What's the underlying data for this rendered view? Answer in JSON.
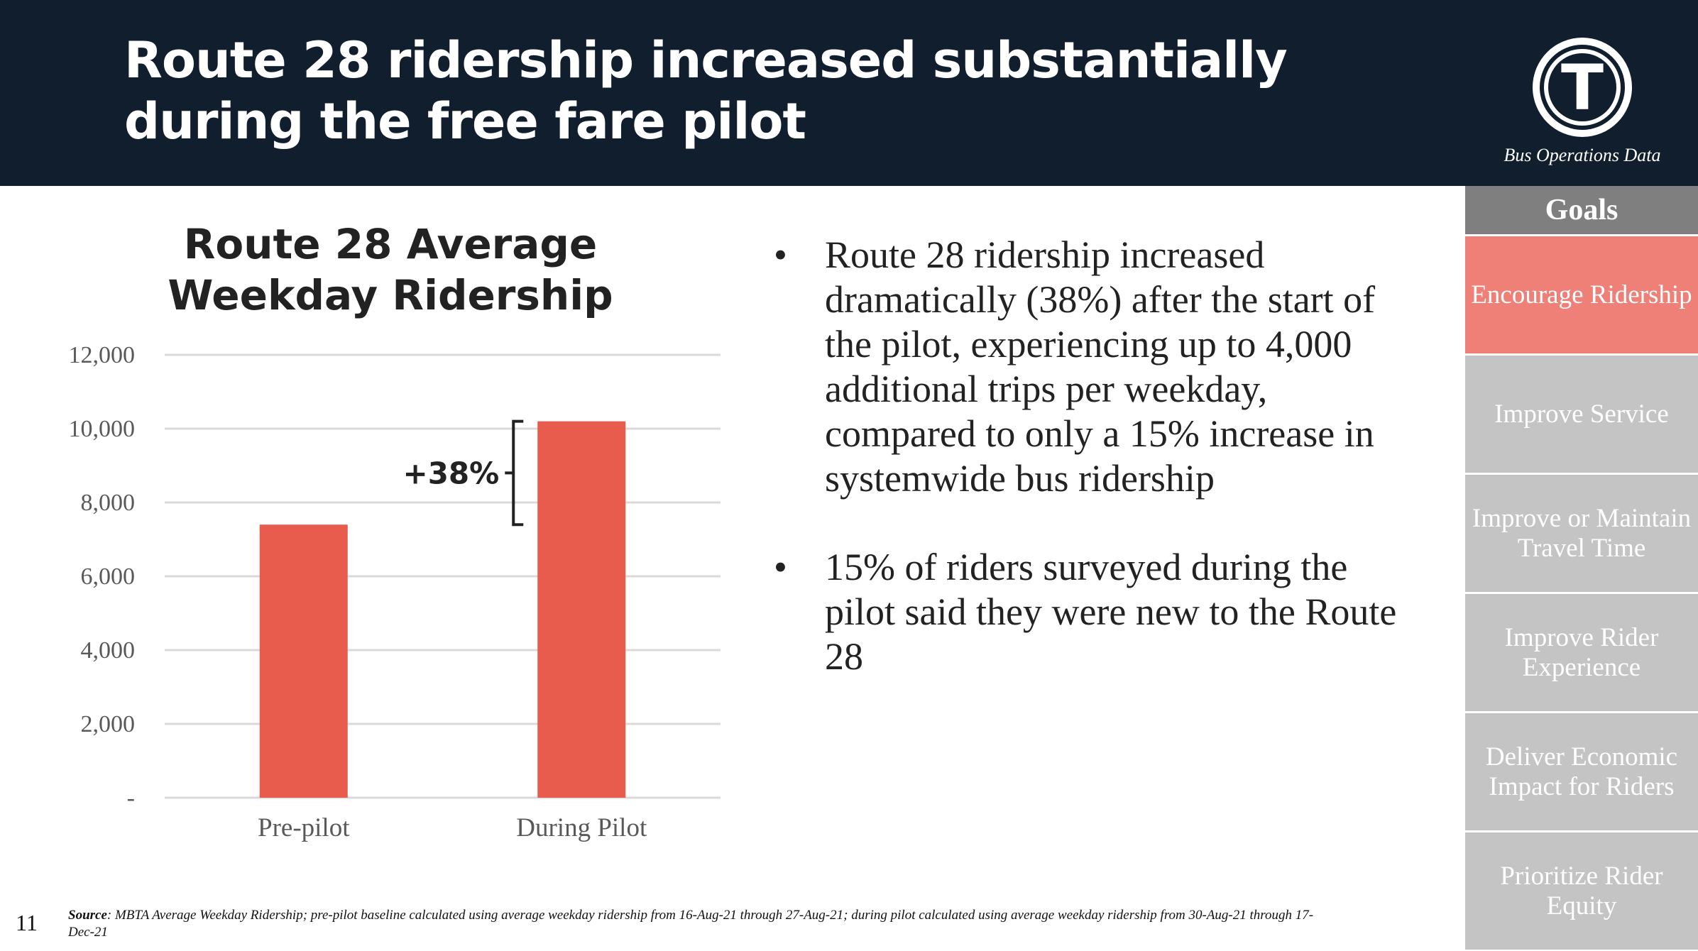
{
  "header": {
    "title": "Route 28 ridership increased substantially during the free fare pilot",
    "logo_letter": "T",
    "logo_caption": "Bus Operations Data"
  },
  "sidebar": {
    "heading": "Goals",
    "goals": [
      {
        "label": "Encourage Ridership",
        "active": true
      },
      {
        "label": "Improve Service",
        "active": false
      },
      {
        "label": "Improve or Maintain Travel Time",
        "active": false
      },
      {
        "label": "Improve Rider Experience",
        "active": false
      },
      {
        "label": "Deliver Economic Impact for Riders",
        "active": false
      },
      {
        "label": "Prioritize Rider Equity",
        "active": false
      }
    ]
  },
  "chart_data": {
    "type": "bar",
    "title": "Route 28 Average Weekday Ridership",
    "categories": [
      "Pre-pilot",
      "During Pilot"
    ],
    "values": [
      7400,
      10200
    ],
    "ylim": [
      0,
      12000
    ],
    "yticks": [
      {
        "value": 0,
        "label": "-"
      },
      {
        "value": 2000,
        "label": "2,000"
      },
      {
        "value": 4000,
        "label": "4,000"
      },
      {
        "value": 6000,
        "label": "6,000"
      },
      {
        "value": 8000,
        "label": "8,000"
      },
      {
        "value": 10000,
        "label": "10,000"
      },
      {
        "value": 12000,
        "label": "12,000"
      }
    ],
    "annotation": "+38%",
    "bar_color": "#e85c4d",
    "xlabel": "",
    "ylabel": ""
  },
  "bullets": [
    "Route 28 ridership increased dramatically (38%) after the start of the pilot, experiencing up to 4,000 additional trips per weekday, compared to only a 15% increase in systemwide bus ridership",
    "15% of riders surveyed during the pilot said they were new to the Route 28"
  ],
  "bullet_symbol": "•",
  "footer": {
    "page_number": "11",
    "source_label": "Source",
    "source_text": ": MBTA Average Weekday Ridership; pre-pilot baseline calculated using average weekday ridership from 16-Aug-21 through 27-Aug-21; during pilot calculated using average weekday ridership from 30-Aug-21 through 17-Dec-21"
  }
}
